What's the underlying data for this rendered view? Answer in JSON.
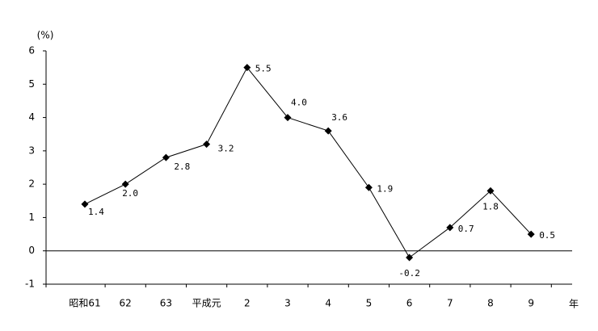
{
  "chart_data": {
    "type": "line",
    "y_unit_label": "(%)",
    "x_unit_label": "年",
    "categories": [
      "昭和61",
      "62",
      "63",
      "平成元",
      "2",
      "3",
      "4",
      "5",
      "6",
      "7",
      "8",
      "9"
    ],
    "values": [
      1.4,
      2.0,
      2.8,
      3.2,
      5.5,
      4.0,
      3.6,
      1.9,
      -0.2,
      0.7,
      1.8,
      0.5
    ],
    "value_labels": [
      "1.4",
      "2.0",
      "2.8",
      "3.2",
      "5.5",
      "4.0",
      "3.6",
      "1.9",
      "-0.2",
      "0.7",
      "1.8",
      "0.5"
    ],
    "color": "#000000",
    "ylim": [
      -1,
      6
    ],
    "yticks": [
      -1,
      0,
      1,
      2,
      3,
      4,
      5,
      6
    ]
  }
}
